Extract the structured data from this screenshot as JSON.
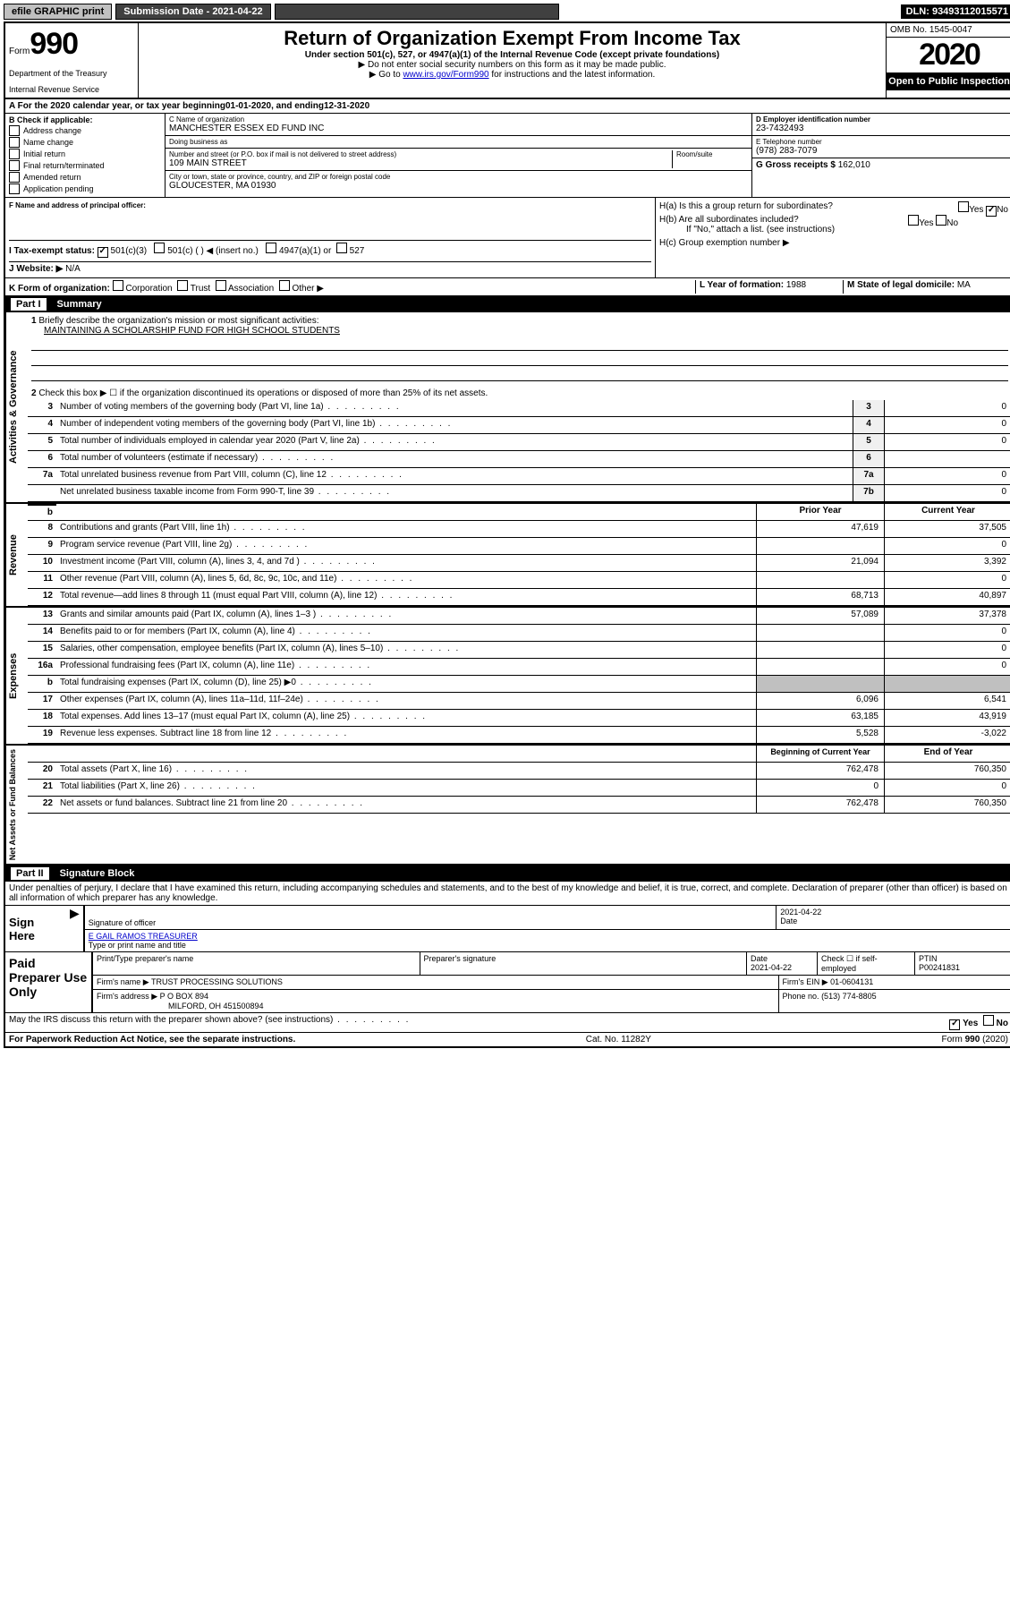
{
  "topbar": {
    "efile": "efile GRAPHIC print",
    "submission_label": "Submission Date - 2021-04-22",
    "dln": "DLN: 93493112015571"
  },
  "header": {
    "form_label": "Form",
    "form_number": "990",
    "dept1": "Department of the Treasury",
    "dept2": "Internal Revenue Service",
    "title": "Return of Organization Exempt From Income Tax",
    "subtitle": "Under section 501(c), 527, or 4947(a)(1) of the Internal Revenue Code (except private foundations)",
    "instr1": "▶ Do not enter social security numbers on this form as it may be made public.",
    "instr2_pre": "▶ Go to ",
    "instr2_link": "www.irs.gov/Form990",
    "instr2_post": " for instructions and the latest information.",
    "omb": "OMB No. 1545-0047",
    "year": "2020",
    "open_public": "Open to Public Inspection"
  },
  "period": {
    "text_pre": "A For the 2020 calendar year, or tax year beginning ",
    "begin": "01-01-2020",
    "mid": " , and ending ",
    "end": "12-31-2020"
  },
  "section_b": {
    "label": "B Check if applicable:",
    "items": [
      "Address change",
      "Name change",
      "Initial return",
      "Final return/terminated",
      "Amended return",
      "Application pending"
    ]
  },
  "org": {
    "name_label": "C Name of organization",
    "name": "MANCHESTER ESSEX ED FUND INC",
    "dba_label": "Doing business as",
    "dba": "",
    "street_label": "Number and street (or P.O. box if mail is not delivered to street address)",
    "room_label": "Room/suite",
    "street": "109 MAIN STREET",
    "city_label": "City or town, state or province, country, and ZIP or foreign postal code",
    "city": "GLOUCESTER, MA  01930",
    "officer_label": "F Name and address of principal officer:",
    "officer": ""
  },
  "right_info": {
    "ein_label": "D Employer identification number",
    "ein": "23-7432493",
    "phone_label": "E Telephone number",
    "phone": "(978) 283-7079",
    "gross_label": "G Gross receipts $",
    "gross": "162,010"
  },
  "h_section": {
    "ha": "H(a)  Is this a group return for subordinates?",
    "hb": "H(b)  Are all subordinates included?",
    "hb_note": "If \"No,\" attach a list. (see instructions)",
    "hc": "H(c)  Group exemption number ▶",
    "yes": "Yes",
    "no": "No"
  },
  "status": {
    "i_label": "I   Tax-exempt status:",
    "opt1": "501(c)(3)",
    "opt2": "501(c) (   ) ◀ (insert no.)",
    "opt3": "4947(a)(1) or",
    "opt4": "527",
    "j_label": "J   Website: ▶",
    "j_val": "N/A"
  },
  "k_line": {
    "label": "K Form of organization:",
    "opts": [
      "Corporation",
      "Trust",
      "Association",
      "Other ▶"
    ],
    "l_label": "L Year of formation:",
    "l_val": "1988",
    "m_label": "M State of legal domicile:",
    "m_val": "MA"
  },
  "part1": {
    "label": "Part I",
    "title": "Summary"
  },
  "summary": {
    "q1": "Briefly describe the organization's mission or most significant activities:",
    "mission": "MAINTAINING A SCHOLARSHIP FUND FOR HIGH SCHOOL STUDENTS",
    "q2": "Check this box ▶ ☐  if the organization discontinued its operations or disposed of more than 25% of its net assets.",
    "lines": [
      {
        "n": "3",
        "t": "Number of voting members of the governing body (Part VI, line 1a)",
        "box": "3",
        "v": "0"
      },
      {
        "n": "4",
        "t": "Number of independent voting members of the governing body (Part VI, line 1b)",
        "box": "4",
        "v": "0"
      },
      {
        "n": "5",
        "t": "Total number of individuals employed in calendar year 2020 (Part V, line 2a)",
        "box": "5",
        "v": "0"
      },
      {
        "n": "6",
        "t": "Total number of volunteers (estimate if necessary)",
        "box": "6",
        "v": ""
      },
      {
        "n": "7a",
        "t": "Total unrelated business revenue from Part VIII, column (C), line 12",
        "box": "7a",
        "v": "0"
      },
      {
        "n": "",
        "t": "Net unrelated business taxable income from Form 990-T, line 39",
        "box": "7b",
        "v": "0"
      }
    ],
    "col_prior": "Prior Year",
    "col_current": "Current Year",
    "revenue": [
      {
        "n": "8",
        "t": "Contributions and grants (Part VIII, line 1h)",
        "p": "47,619",
        "c": "37,505"
      },
      {
        "n": "9",
        "t": "Program service revenue (Part VIII, line 2g)",
        "p": "",
        "c": "0"
      },
      {
        "n": "10",
        "t": "Investment income (Part VIII, column (A), lines 3, 4, and 7d )",
        "p": "21,094",
        "c": "3,392"
      },
      {
        "n": "11",
        "t": "Other revenue (Part VIII, column (A), lines 5, 6d, 8c, 9c, 10c, and 11e)",
        "p": "",
        "c": "0"
      },
      {
        "n": "12",
        "t": "Total revenue—add lines 8 through 11 (must equal Part VIII, column (A), line 12)",
        "p": "68,713",
        "c": "40,897"
      }
    ],
    "expenses": [
      {
        "n": "13",
        "t": "Grants and similar amounts paid (Part IX, column (A), lines 1–3 )",
        "p": "57,089",
        "c": "37,378"
      },
      {
        "n": "14",
        "t": "Benefits paid to or for members (Part IX, column (A), line 4)",
        "p": "",
        "c": "0"
      },
      {
        "n": "15",
        "t": "Salaries, other compensation, employee benefits (Part IX, column (A), lines 5–10)",
        "p": "",
        "c": "0"
      },
      {
        "n": "16a",
        "t": "Professional fundraising fees (Part IX, column (A), line 11e)",
        "p": "",
        "c": "0"
      },
      {
        "n": "b",
        "t": "Total fundraising expenses (Part IX, column (D), line 25) ▶0",
        "p": "shaded",
        "c": "shaded"
      },
      {
        "n": "17",
        "t": "Other expenses (Part IX, column (A), lines 11a–11d, 11f–24e)",
        "p": "6,096",
        "c": "6,541"
      },
      {
        "n": "18",
        "t": "Total expenses. Add lines 13–17 (must equal Part IX, column (A), line 25)",
        "p": "63,185",
        "c": "43,919"
      },
      {
        "n": "19",
        "t": "Revenue less expenses. Subtract line 18 from line 12",
        "p": "5,528",
        "c": "-3,022"
      }
    ],
    "col_begin": "Beginning of Current Year",
    "col_end": "End of Year",
    "net": [
      {
        "n": "20",
        "t": "Total assets (Part X, line 16)",
        "p": "762,478",
        "c": "760,350"
      },
      {
        "n": "21",
        "t": "Total liabilities (Part X, line 26)",
        "p": "0",
        "c": "0"
      },
      {
        "n": "22",
        "t": "Net assets or fund balances. Subtract line 21 from line 20",
        "p": "762,478",
        "c": "760,350"
      }
    ]
  },
  "part2": {
    "label": "Part II",
    "title": "Signature Block",
    "perjury": "Under penalties of perjury, I declare that I have examined this return, including accompanying schedules and statements, and to the best of my knowledge and belief, it is true, correct, and complete. Declaration of preparer (other than officer) is based on all information of which preparer has any knowledge."
  },
  "signature": {
    "sign_here": "Sign Here",
    "sig_officer": "Signature of officer",
    "date": "2021-04-22",
    "date_label": "Date",
    "name_title": "E GAIL RAMOS TREASURER",
    "name_title_label": "Type or print name and title",
    "paid_label": "Paid Preparer Use Only",
    "prep_name_label": "Print/Type preparer's name",
    "prep_sig_label": "Preparer's signature",
    "prep_date_label": "Date",
    "prep_date": "2021-04-22",
    "check_self": "Check ☐ if self-employed",
    "ptin_label": "PTIN",
    "ptin": "P00241831",
    "firm_name_label": "Firm's name    ▶",
    "firm_name": "TRUST PROCESSING SOLUTIONS",
    "firm_ein_label": "Firm's EIN ▶",
    "firm_ein": "01-0604131",
    "firm_addr_label": "Firm's address ▶",
    "firm_addr1": "P O BOX 894",
    "firm_addr2": "MILFORD, OH  451500894",
    "firm_phone_label": "Phone no.",
    "firm_phone": "(513) 774-8805"
  },
  "footer": {
    "discuss": "May the IRS discuss this return with the preparer shown above? (see instructions)",
    "paperwork": "For Paperwork Reduction Act Notice, see the separate instructions.",
    "cat": "Cat. No. 11282Y",
    "form": "Form 990 (2020)",
    "yes": "Yes",
    "no": "No"
  }
}
